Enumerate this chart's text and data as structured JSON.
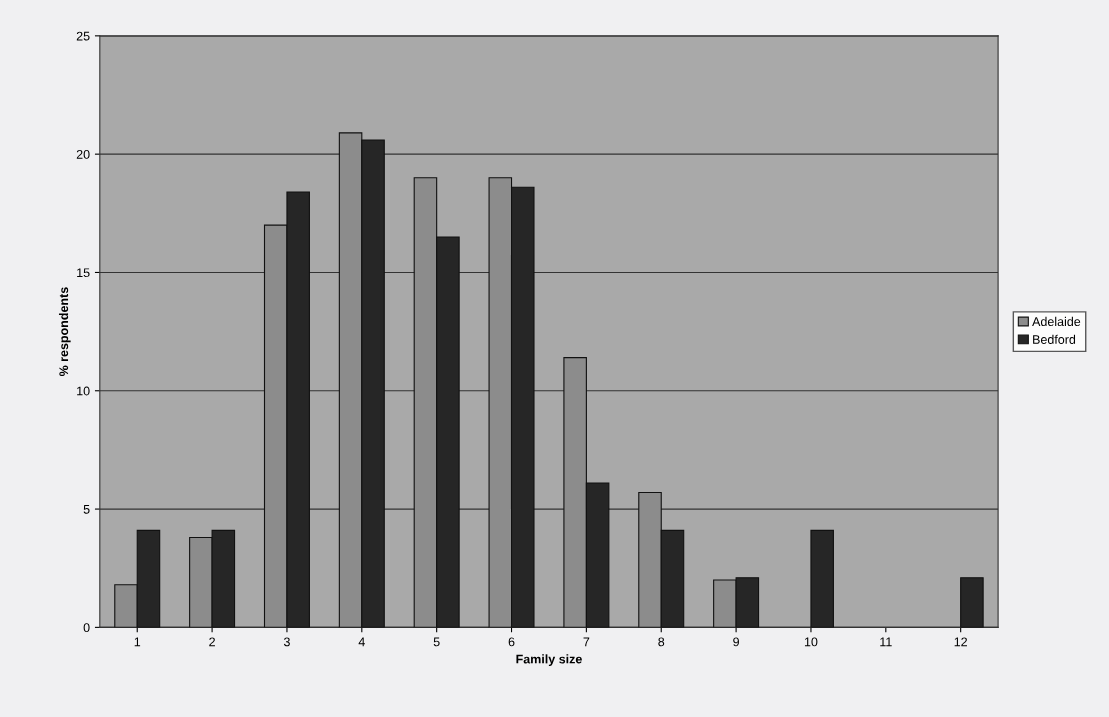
{
  "chart_data": {
    "type": "bar",
    "xlabel": "Family size",
    "ylabel": "% respondents",
    "categories": [
      "1",
      "2",
      "3",
      "4",
      "5",
      "6",
      "7",
      "8",
      "9",
      "10",
      "11",
      "12"
    ],
    "series": [
      {
        "name": "Adelaide",
        "color": "#8c8c8c",
        "values": [
          1.8,
          3.8,
          17.0,
          20.9,
          19.0,
          19.0,
          11.4,
          5.7,
          2.0,
          0,
          0,
          0
        ]
      },
      {
        "name": "Bedford",
        "color": "#262626",
        "values": [
          4.1,
          4.1,
          18.4,
          20.6,
          16.5,
          18.6,
          6.1,
          4.1,
          2.1,
          4.1,
          0,
          2.1
        ]
      }
    ],
    "ylim": [
      0,
      25
    ],
    "yticks": [
      0,
      5,
      10,
      15,
      20,
      25
    ],
    "grid": "y",
    "legend": "right"
  }
}
